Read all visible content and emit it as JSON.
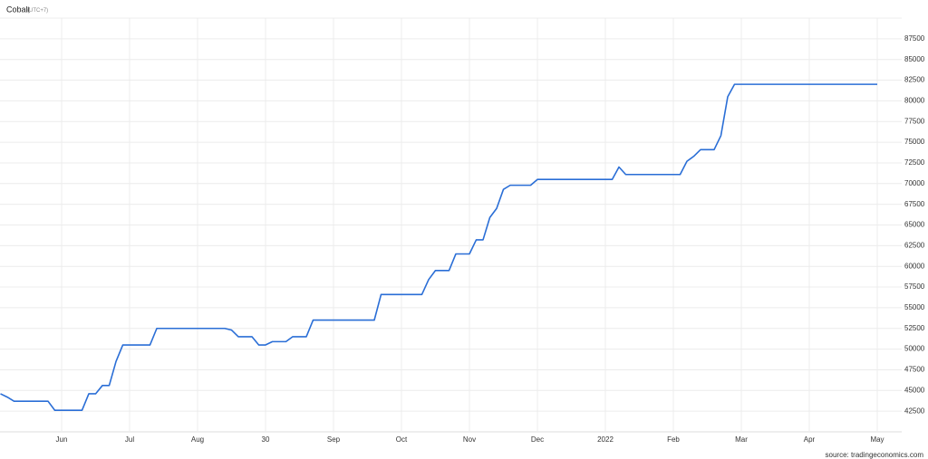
{
  "chart_data": {
    "type": "line",
    "title": "Cobalt",
    "subtitle": "(UTC+7)",
    "source": "source: tradingeconomics.com",
    "categories": [
      null,
      null,
      null,
      null,
      null,
      null,
      null,
      null,
      null,
      "Jun",
      null,
      null,
      null,
      null,
      null,
      null,
      null,
      null,
      null,
      "Jul",
      null,
      null,
      null,
      null,
      null,
      null,
      null,
      null,
      null,
      "Aug",
      null,
      null,
      null,
      null,
      null,
      null,
      null,
      null,
      null,
      "30",
      null,
      null,
      null,
      null,
      null,
      null,
      null,
      null,
      null,
      "Sep",
      null,
      null,
      null,
      null,
      null,
      null,
      null,
      null,
      null,
      "Oct",
      null,
      null,
      null,
      null,
      null,
      null,
      null,
      null,
      null,
      "Nov",
      null,
      null,
      null,
      null,
      null,
      null,
      null,
      null,
      null,
      "Dec",
      null,
      null,
      null,
      null,
      null,
      null,
      null,
      null,
      null,
      "2022",
      null,
      null,
      null,
      null,
      null,
      null,
      null,
      null,
      null,
      "Feb",
      null,
      null,
      null,
      null,
      null,
      null,
      null,
      null,
      null,
      "Mar",
      null,
      null,
      null,
      null,
      null,
      null,
      null,
      null,
      null,
      "Apr",
      null,
      null,
      null,
      null,
      null,
      null,
      null,
      null,
      null,
      "May"
    ],
    "values": [
      44600,
      44200,
      43700,
      43700,
      43700,
      43700,
      43700,
      43700,
      42600,
      42600,
      42600,
      42600,
      42600,
      44600,
      44600,
      45600,
      45600,
      48500,
      50500,
      50500,
      50500,
      50500,
      50500,
      52500,
      52500,
      52500,
      52500,
      52500,
      52500,
      52500,
      52500,
      52500,
      52500,
      52500,
      52300,
      51500,
      51500,
      51500,
      50500,
      50500,
      50900,
      50900,
      50900,
      51500,
      51500,
      51500,
      53500,
      53500,
      53500,
      53500,
      53500,
      53500,
      53500,
      53500,
      53500,
      53500,
      56600,
      56600,
      56600,
      56600,
      56600,
      56600,
      56600,
      58400,
      59500,
      59500,
      59500,
      61500,
      61500,
      61500,
      63200,
      63200,
      65900,
      67000,
      69300,
      69800,
      69800,
      69800,
      69800,
      70500,
      70500,
      70500,
      70500,
      70500,
      70500,
      70500,
      70500,
      70500,
      70500,
      70500,
      70500,
      72000,
      71100,
      71100,
      71100,
      71100,
      71100,
      71100,
      71100,
      71100,
      71100,
      72700,
      73300,
      74100,
      74100,
      74100,
      75800,
      80500,
      82000,
      82000,
      82000,
      82000,
      82000,
      82000,
      82000,
      82000,
      82000,
      82000,
      82000,
      82000,
      82000,
      82000,
      82000,
      82000,
      82000,
      82000,
      82000,
      82000,
      82000,
      82000
    ],
    "color": "#2a6ed6",
    "ylim": [
      40000,
      90000
    ],
    "yticks": [
      42500,
      45000,
      47500,
      50000,
      52500,
      55000,
      57500,
      60000,
      62500,
      65000,
      67500,
      70000,
      72500,
      75000,
      77500,
      80000,
      82500,
      85000,
      87500
    ],
    "grid": true
  }
}
